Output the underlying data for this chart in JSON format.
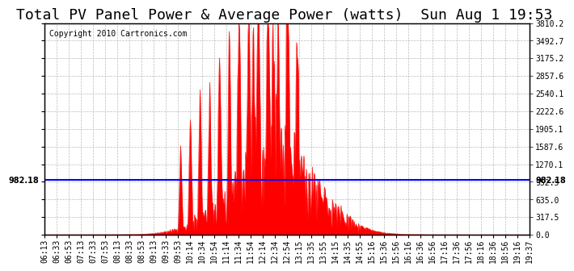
{
  "title": "Total PV Panel Power & Average Power (watts)  Sun Aug 1 19:53",
  "copyright": "Copyright 2010 Cartronics.com",
  "avg_line_value": 982.18,
  "avg_label": "982.18",
  "y_max": 3810.2,
  "y_ticks": [
    0.0,
    317.5,
    635.0,
    952.5,
    1270.1,
    1587.6,
    1905.1,
    2222.6,
    2540.1,
    2857.6,
    3175.2,
    3492.7,
    3810.2
  ],
  "fill_color": "#FF0000",
  "line_color": "#FF0000",
  "avg_line_color": "#0000FF",
  "bg_color": "#FFFFFF",
  "plot_bg_color": "#FFFFFF",
  "grid_color": "#AAAAAA",
  "title_fontsize": 13,
  "copyright_fontsize": 7,
  "tick_fontsize": 7,
  "x_tick_labels": [
    "06:13",
    "06:33",
    "06:53",
    "07:13",
    "07:33",
    "07:53",
    "08:13",
    "08:33",
    "08:53",
    "09:13",
    "09:33",
    "09:53",
    "10:14",
    "10:34",
    "10:54",
    "11:14",
    "11:34",
    "11:54",
    "12:14",
    "12:34",
    "12:54",
    "13:15",
    "13:35",
    "13:55",
    "14:15",
    "14:35",
    "14:55",
    "15:16",
    "15:36",
    "15:56",
    "16:16",
    "16:36",
    "16:56",
    "17:16",
    "17:36",
    "17:56",
    "18:16",
    "18:36",
    "18:56",
    "19:16",
    "19:37"
  ]
}
